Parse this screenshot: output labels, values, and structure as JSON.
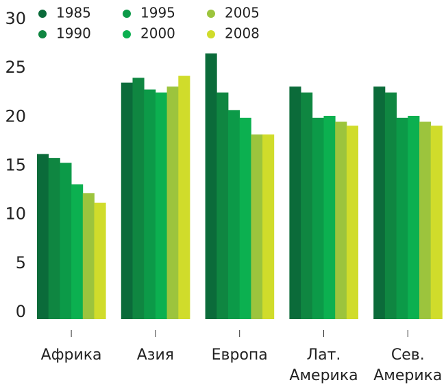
{
  "chart_data": {
    "type": "bar",
    "categories": [
      "Африка",
      "Азия",
      "Европа",
      "Лат. Америка",
      "Сев. Америка"
    ],
    "series": [
      {
        "name": "1985",
        "color": "#0b6b3a",
        "values": [
          16.2,
          23.5,
          26.5,
          23.1,
          23.1
        ]
      },
      {
        "name": "1990",
        "color": "#0f8641",
        "values": [
          15.8,
          24.0,
          22.5,
          22.5,
          22.5
        ]
      },
      {
        "name": "1995",
        "color": "#0c9a48",
        "values": [
          15.3,
          22.8,
          20.7,
          19.9,
          19.9
        ]
      },
      {
        "name": "2000",
        "color": "#0cb050",
        "values": [
          13.1,
          22.5,
          19.9,
          20.1,
          20.1
        ]
      },
      {
        "name": "2005",
        "color": "#9cc43d",
        "values": [
          12.2,
          23.1,
          18.2,
          19.5,
          19.5
        ]
      },
      {
        "name": "2008",
        "color": "#d0dc2b",
        "values": [
          11.2,
          24.2,
          18.2,
          19.1,
          19.1
        ]
      }
    ],
    "ylim": [
      0,
      30
    ],
    "yticks": [
      0,
      5,
      10,
      15,
      20,
      25,
      30
    ],
    "grid": false
  }
}
